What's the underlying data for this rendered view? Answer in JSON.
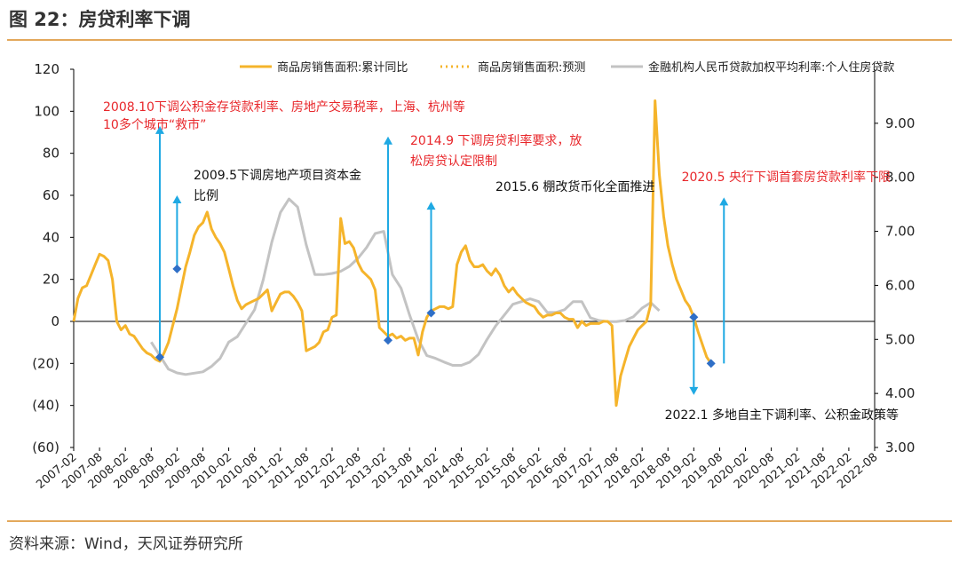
{
  "figure": {
    "title": "图 22：房贷利率下调",
    "source": "资料来源：Wind，天风证券研究所"
  },
  "chart_data": {
    "type": "line",
    "grid": false,
    "legend_position": "top-right",
    "colors": {
      "sales": "#f5b42b",
      "forecast": "#f5b42b",
      "rate": "#c3c3c3",
      "annotation_red": "#e8272b",
      "arrow": "#1fa9e3",
      "marker": "#2f6fc7"
    },
    "x_ticks": [
      "2007-02",
      "2007-08",
      "2008-02",
      "2008-08",
      "2009-02",
      "2009-08",
      "2010-02",
      "2010-08",
      "2011-02",
      "2011-08",
      "2012-02",
      "2012-08",
      "2013-02",
      "2013-08",
      "2014-02",
      "2014-08",
      "2015-02",
      "2015-08",
      "2016-02",
      "2016-08",
      "2017-02",
      "2017-08",
      "2018-02",
      "2018-08",
      "2019-02",
      "2019-08",
      "2020-02",
      "2020-08",
      "2021-02",
      "2021-08",
      "2022-02",
      "2022-08"
    ],
    "y_left": {
      "min": -60,
      "max": 120,
      "ticks": [
        {
          "v": 120,
          "label": "120"
        },
        {
          "v": 100,
          "label": "100"
        },
        {
          "v": 80,
          "label": "80"
        },
        {
          "v": 60,
          "label": "60"
        },
        {
          "v": 40,
          "label": "40"
        },
        {
          "v": 20,
          "label": "20"
        },
        {
          "v": 0,
          "label": "0"
        },
        {
          "v": -20,
          "label": "(20)"
        },
        {
          "v": -40,
          "label": "(40)"
        },
        {
          "v": -60,
          "label": "(60)"
        }
      ]
    },
    "y_right": {
      "min": 3.0,
      "max": 10.0,
      "ticks": [
        {
          "v": 9,
          "label": "9.00"
        },
        {
          "v": 8,
          "label": "8.00"
        },
        {
          "v": 7,
          "label": "7.00"
        },
        {
          "v": 6,
          "label": "6.00"
        },
        {
          "v": 5,
          "label": "5.00"
        },
        {
          "v": 4,
          "label": "4.00"
        },
        {
          "v": 3,
          "label": "3.00"
        }
      ]
    },
    "series": [
      {
        "name": "商品房销售面积:累计同比",
        "axis": "left",
        "style": "solid",
        "points": [
          [
            "2007-02",
            0
          ],
          [
            "2007-03",
            11
          ],
          [
            "2007-04",
            16
          ],
          [
            "2007-05",
            17
          ],
          [
            "2007-06",
            22
          ],
          [
            "2007-07",
            27
          ],
          [
            "2007-08",
            32
          ],
          [
            "2007-09",
            31
          ],
          [
            "2007-10",
            29
          ],
          [
            "2007-11",
            20
          ],
          [
            "2007-12",
            0
          ],
          [
            "2008-01",
            -4
          ],
          [
            "2008-02",
            -2
          ],
          [
            "2008-03",
            -6
          ],
          [
            "2008-04",
            -7
          ],
          [
            "2008-05",
            -10
          ],
          [
            "2008-06",
            -13
          ],
          [
            "2008-07",
            -15
          ],
          [
            "2008-08",
            -16
          ],
          [
            "2008-09",
            -18
          ],
          [
            "2008-10",
            -19
          ],
          [
            "2008-11",
            -15
          ],
          [
            "2008-12",
            -10
          ],
          [
            "2009-01",
            -2
          ],
          [
            "2009-02",
            6
          ],
          [
            "2009-03",
            16
          ],
          [
            "2009-04",
            26
          ],
          [
            "2009-05",
            33
          ],
          [
            "2009-06",
            41
          ],
          [
            "2009-07",
            45
          ],
          [
            "2009-08",
            47
          ],
          [
            "2009-09",
            52
          ],
          [
            "2009-10",
            44
          ],
          [
            "2009-11",
            40
          ],
          [
            "2009-12",
            37
          ],
          [
            "2010-01",
            33
          ],
          [
            "2010-02",
            25
          ],
          [
            "2010-03",
            17
          ],
          [
            "2010-04",
            10
          ],
          [
            "2010-05",
            6
          ],
          [
            "2010-06",
            8
          ],
          [
            "2010-07",
            9
          ],
          [
            "2010-08",
            10
          ],
          [
            "2010-09",
            11
          ],
          [
            "2010-10",
            13
          ],
          [
            "2010-11",
            15
          ],
          [
            "2010-12",
            5
          ],
          [
            "2011-01",
            9
          ],
          [
            "2011-02",
            13
          ],
          [
            "2011-03",
            14
          ],
          [
            "2011-04",
            14
          ],
          [
            "2011-05",
            12
          ],
          [
            "2011-06",
            9
          ],
          [
            "2011-07",
            5
          ],
          [
            "2011-08",
            -14
          ],
          [
            "2011-09",
            -13
          ],
          [
            "2011-10",
            -12
          ],
          [
            "2011-11",
            -10
          ],
          [
            "2011-12",
            -5
          ],
          [
            "2012-01",
            -4
          ],
          [
            "2012-02",
            2
          ],
          [
            "2012-03",
            3
          ],
          [
            "2012-04",
            49
          ],
          [
            "2012-05",
            37
          ],
          [
            "2012-06",
            38
          ],
          [
            "2012-07",
            35
          ],
          [
            "2012-08",
            28
          ],
          [
            "2012-09",
            24
          ],
          [
            "2012-10",
            22
          ],
          [
            "2012-11",
            20
          ],
          [
            "2012-12",
            15
          ],
          [
            "2013-01",
            -3
          ],
          [
            "2013-02",
            -5
          ],
          [
            "2013-03",
            -7
          ],
          [
            "2013-04",
            -6
          ],
          [
            "2013-05",
            -8
          ],
          [
            "2013-06",
            -7
          ],
          [
            "2013-07",
            -9
          ],
          [
            "2013-08",
            -8
          ],
          [
            "2013-09",
            -8
          ],
          [
            "2013-10",
            -16
          ],
          [
            "2013-11",
            -5
          ],
          [
            "2013-12",
            2
          ],
          [
            "2014-01",
            5
          ],
          [
            "2014-02",
            6
          ],
          [
            "2014-03",
            7
          ],
          [
            "2014-04",
            7
          ],
          [
            "2014-05",
            6
          ],
          [
            "2014-06",
            7
          ],
          [
            "2014-07",
            27
          ],
          [
            "2014-08",
            33
          ],
          [
            "2014-09",
            36
          ],
          [
            "2014-10",
            29
          ],
          [
            "2014-11",
            26
          ],
          [
            "2014-12",
            26
          ],
          [
            "2015-01",
            27
          ],
          [
            "2015-02",
            24
          ],
          [
            "2015-03",
            22
          ],
          [
            "2015-04",
            25
          ],
          [
            "2015-05",
            22
          ],
          [
            "2015-06",
            17
          ],
          [
            "2015-07",
            14
          ],
          [
            "2015-08",
            16
          ],
          [
            "2015-09",
            13
          ],
          [
            "2015-10",
            11
          ],
          [
            "2015-11",
            9
          ],
          [
            "2015-12",
            8
          ],
          [
            "2016-01",
            7
          ],
          [
            "2016-02",
            4
          ],
          [
            "2016-03",
            2
          ],
          [
            "2016-04",
            3
          ],
          [
            "2016-05",
            3
          ],
          [
            "2016-06",
            4
          ],
          [
            "2016-07",
            4
          ],
          [
            "2016-08",
            2
          ],
          [
            "2016-09",
            1
          ],
          [
            "2016-10",
            1
          ],
          [
            "2016-11",
            -3
          ],
          [
            "2016-12",
            0
          ],
          [
            "2017-01",
            -2
          ],
          [
            "2017-02",
            -1
          ],
          [
            "2017-03",
            -1
          ],
          [
            "2017-04",
            -1
          ],
          [
            "2017-05",
            0
          ],
          [
            "2017-06",
            0
          ],
          [
            "2017-07",
            -2
          ],
          [
            "2017-08",
            -40
          ],
          [
            "2017-09",
            -26
          ],
          [
            "2017-10",
            -19
          ],
          [
            "2017-11",
            -12
          ],
          [
            "2017-12",
            -8
          ],
          [
            "2018-01",
            -4
          ],
          [
            "2018-02",
            -2
          ],
          [
            "2018-03",
            0
          ],
          [
            "2018-04",
            8
          ],
          [
            "2018-05",
            105
          ],
          [
            "2018-06",
            70
          ],
          [
            "2018-07",
            50
          ],
          [
            "2018-08",
            36
          ],
          [
            "2018-09",
            27
          ],
          [
            "2018-10",
            20
          ],
          [
            "2018-11",
            15
          ],
          [
            "2018-12",
            10
          ],
          [
            "2019-01",
            7
          ],
          [
            "2019-02",
            2
          ],
          [
            "2019-03",
            -5
          ],
          [
            "2019-04",
            -11
          ],
          [
            "2019-05",
            -17
          ],
          [
            "2019-06",
            -20
          ]
        ]
      },
      {
        "name": "商品房销售面积:预测",
        "axis": "left",
        "style": "dotted",
        "points": []
      },
      {
        "name": "金融机构人民币贷款加权平均利率:个人住房贷款",
        "axis": "right",
        "style": "solid",
        "points": [
          [
            "2008-08",
            4.95
          ],
          [
            "2008-10",
            4.7
          ],
          [
            "2008-12",
            4.45
          ],
          [
            "2009-02",
            4.38
          ],
          [
            "2009-04",
            4.35
          ],
          [
            "2009-08",
            4.4
          ],
          [
            "2009-10",
            4.5
          ],
          [
            "2009-12",
            4.65
          ],
          [
            "2010-02",
            4.95
          ],
          [
            "2010-04",
            5.05
          ],
          [
            "2010-06",
            5.3
          ],
          [
            "2010-08",
            5.55
          ],
          [
            "2010-10",
            6.1
          ],
          [
            "2010-12",
            6.8
          ],
          [
            "2011-02",
            7.35
          ],
          [
            "2011-04",
            7.6
          ],
          [
            "2011-06",
            7.45
          ],
          [
            "2011-08",
            6.75
          ],
          [
            "2011-10",
            6.2
          ],
          [
            "2011-12",
            6.2
          ],
          [
            "2012-02",
            6.22
          ],
          [
            "2012-04",
            6.26
          ],
          [
            "2012-06",
            6.35
          ],
          [
            "2012-08",
            6.5
          ],
          [
            "2012-10",
            6.7
          ],
          [
            "2012-12",
            6.96
          ],
          [
            "2013-02",
            7.0
          ],
          [
            "2013-04",
            6.2
          ],
          [
            "2013-06",
            5.95
          ],
          [
            "2013-08",
            5.45
          ],
          [
            "2013-10",
            5.0
          ],
          [
            "2013-12",
            4.7
          ],
          [
            "2014-02",
            4.65
          ],
          [
            "2014-04",
            4.58
          ],
          [
            "2014-06",
            4.52
          ],
          [
            "2014-08",
            4.52
          ],
          [
            "2014-10",
            4.58
          ],
          [
            "2014-12",
            4.72
          ],
          [
            "2015-02",
            5.0
          ],
          [
            "2015-04",
            5.25
          ],
          [
            "2015-06",
            5.45
          ],
          [
            "2015-08",
            5.65
          ],
          [
            "2015-10",
            5.7
          ],
          [
            "2015-12",
            5.75
          ],
          [
            "2016-02",
            5.7
          ],
          [
            "2016-04",
            5.5
          ],
          [
            "2016-06",
            5.5
          ],
          [
            "2016-08",
            5.55
          ],
          [
            "2016-10",
            5.7
          ],
          [
            "2016-12",
            5.7
          ],
          [
            "2017-02",
            5.4
          ],
          [
            "2017-04",
            5.35
          ],
          [
            "2017-06",
            5.33
          ],
          [
            "2017-08",
            5.33
          ],
          [
            "2017-10",
            5.35
          ],
          [
            "2017-12",
            5.42
          ],
          [
            "2018-02",
            5.58
          ],
          [
            "2018-04",
            5.68
          ],
          [
            "2018-06",
            5.53
          ]
        ]
      }
    ],
    "markers": [
      {
        "x": "2008-10",
        "y": -17,
        "axis": "left"
      },
      {
        "x": "2009-02",
        "y": 25,
        "axis": "left"
      },
      {
        "x": "2013-03",
        "y": -9,
        "axis": "left"
      },
      {
        "x": "2014-01",
        "y": 4,
        "axis": "left"
      },
      {
        "x": "2019-02",
        "y": 2,
        "axis": "left"
      },
      {
        "x": "2019-06",
        "y": -20,
        "axis": "left"
      }
    ],
    "arrows": [
      {
        "x": "2008-10",
        "from": -17,
        "to": 93
      },
      {
        "x": "2009-02",
        "from": 25,
        "to": 60
      },
      {
        "x": "2013-03",
        "from": -9,
        "to": 88
      },
      {
        "x": "2014-01",
        "from": 4,
        "to": 57
      },
      {
        "x": "2019-02",
        "from": 2,
        "to": -35
      },
      {
        "x": "2019-09",
        "from": -20,
        "to": 59
      }
    ],
    "annotations": [
      {
        "id": "a2008_line1",
        "text": "2008.10下调公积金存贷款利率、房地产交易税率，上海、杭州等",
        "color": "red"
      },
      {
        "id": "a2008_line2",
        "text": "10多个城市“救市”",
        "color": "red"
      },
      {
        "id": "a2009_line1",
        "text": "2009.5下调房地产项目资本金",
        "color": "black"
      },
      {
        "id": "a2009_line2",
        "text": "比例",
        "color": "black"
      },
      {
        "id": "a2014_line1",
        "text": "2014.9 下调房贷利率要求，放",
        "color": "red"
      },
      {
        "id": "a2014_line2",
        "text": "松房贷认定限制",
        "color": "red"
      },
      {
        "id": "a2015",
        "text": "2015.6 棚改货币化全面推进",
        "color": "black"
      },
      {
        "id": "a2020",
        "text": "2020.5 央行下调首套房贷款利率下限",
        "color": "red"
      },
      {
        "id": "a2022",
        "text": "2022.1 多地自主下调利率、公积金政策等",
        "color": "black"
      }
    ]
  }
}
